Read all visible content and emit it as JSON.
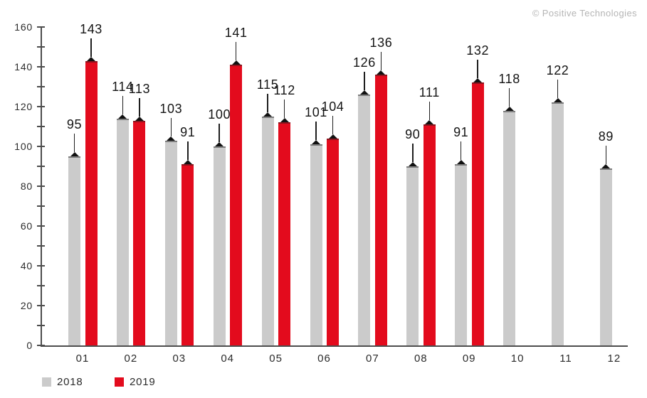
{
  "copyright": "© Positive Technologies",
  "colors": {
    "axis": "#4d4d4d",
    "value_label": "#141414",
    "axis_label": "#2b2b2b",
    "copyright_text": "#b5b5b5",
    "series_2018": "#cbcbcb",
    "series_2019": "#e30b1d",
    "marker": "#111111"
  },
  "chart_data": {
    "type": "bar",
    "title": "",
    "xlabel": "",
    "ylabel": "",
    "categories": [
      "01",
      "02",
      "03",
      "04",
      "05",
      "06",
      "07",
      "08",
      "09",
      "10",
      "11",
      "12"
    ],
    "series": [
      {
        "name": "2018",
        "color": "#cbcbcb",
        "values": [
          95,
          114,
          103,
          100,
          115,
          101,
          126,
          90,
          91,
          118,
          122,
          89
        ]
      },
      {
        "name": "2019",
        "color": "#e30b1d",
        "values": [
          143,
          113,
          91,
          141,
          112,
          104,
          136,
          111,
          132,
          null,
          null,
          null
        ]
      }
    ],
    "ylim": [
      0,
      160
    ],
    "yticks": [
      0,
      20,
      40,
      60,
      80,
      100,
      120,
      140,
      160
    ],
    "ytick_minor_step": 10,
    "grid": false,
    "legend_position": "bottom-left",
    "annotations": "value labels above each bar connected by leader line with triangle marker on bar top"
  }
}
